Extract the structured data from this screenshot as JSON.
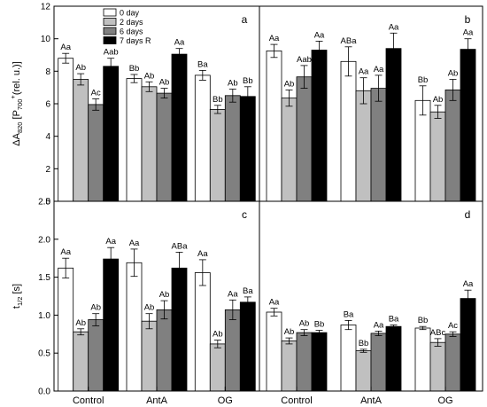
{
  "chart_data": {
    "type": "bar",
    "legend": {
      "position": "top-left",
      "entries": [
        {
          "name": "0 day",
          "color": "#ffffff"
        },
        {
          "name": "2 days",
          "color": "#c0c0c0"
        },
        {
          "name": "6 days",
          "color": "#808080"
        },
        {
          "name": "7 days R",
          "color": "#000000"
        }
      ]
    },
    "categories": [
      "Control",
      "AntA",
      "OG"
    ],
    "panels": [
      {
        "letter": "a",
        "ylabel_main": "ΔA",
        "ylabel_sub1": "820",
        "ylabel_mid": " [P",
        "ylabel_sub2": "700",
        "ylabel_sup": "+",
        "ylabel_end": "(rel. u.)]",
        "ylim": [
          0,
          12
        ],
        "yticks": [
          "0",
          "2",
          "4",
          "6",
          "8",
          "10",
          "12"
        ],
        "series": [
          {
            "name": "0 day",
            "values": [
              8.8,
              7.55,
              7.75
            ],
            "errors": [
              0.3,
              0.25,
              0.3
            ],
            "labels": [
              "Aa",
              "Bb",
              "Ba"
            ]
          },
          {
            "name": "2 days",
            "values": [
              7.5,
              7.05,
              5.65
            ],
            "errors": [
              0.35,
              0.3,
              0.25
            ],
            "labels": [
              "Ab",
              "Ab",
              "Bb"
            ]
          },
          {
            "name": "6 days",
            "values": [
              5.95,
              6.65,
              6.5
            ],
            "errors": [
              0.35,
              0.3,
              0.4
            ],
            "labels": [
              "Ac",
              "Ab",
              "Ab"
            ]
          },
          {
            "name": "7 days R",
            "values": [
              8.3,
              9.05,
              6.45
            ],
            "errors": [
              0.5,
              0.35,
              0.6
            ],
            "labels": [
              "Aab",
              "Aa",
              "Bb"
            ]
          }
        ]
      },
      {
        "letter": "b",
        "ylim": [
          0,
          12
        ],
        "series": [
          {
            "name": "0 day",
            "values": [
              9.25,
              8.6,
              6.2
            ],
            "errors": [
              0.4,
              0.9,
              0.9
            ],
            "labels": [
              "Aa",
              "ABa",
              "Bb"
            ]
          },
          {
            "name": "2 days",
            "values": [
              6.35,
              6.8,
              5.5
            ],
            "errors": [
              0.5,
              0.8,
              0.4
            ],
            "labels": [
              "Ab",
              "Aa",
              "Ab"
            ]
          },
          {
            "name": "6 days",
            "values": [
              7.65,
              6.95,
              6.85
            ],
            "errors": [
              0.7,
              0.8,
              0.65
            ],
            "labels": [
              "Aab",
              "Aa",
              "Ab"
            ]
          },
          {
            "name": "7 days R",
            "values": [
              9.3,
              9.4,
              9.35
            ],
            "errors": [
              0.55,
              0.95,
              0.65
            ],
            "labels": [
              "Aa",
              "Aa",
              "Aa"
            ]
          }
        ]
      },
      {
        "letter": "c",
        "ylabel_main": "t",
        "ylabel_sub1": "1/2",
        "ylabel_end": " [s]",
        "ylim": [
          0,
          2.5
        ],
        "yticks": [
          "0.0",
          "0.5",
          "1.0",
          "1.5",
          "2.0",
          "2.5"
        ],
        "series": [
          {
            "name": "0 day",
            "values": [
              1.62,
              1.69,
              1.56
            ],
            "errors": [
              0.13,
              0.18,
              0.17
            ],
            "labels": [
              "Aa",
              "Aa",
              "Aa"
            ]
          },
          {
            "name": "2 days",
            "values": [
              0.78,
              0.92,
              0.62
            ],
            "errors": [
              0.04,
              0.1,
              0.05
            ],
            "labels": [
              "Ab",
              "Ab",
              "Ab"
            ]
          },
          {
            "name": "6 days",
            "values": [
              0.94,
              1.07,
              1.07
            ],
            "errors": [
              0.08,
              0.12,
              0.13
            ],
            "labels": [
              "Ab",
              "Ab",
              "Aa"
            ]
          },
          {
            "name": "7 days R",
            "values": [
              1.74,
              1.62,
              1.17
            ],
            "errors": [
              0.15,
              0.21,
              0.07
            ],
            "labels": [
              "Aa",
              "ABa",
              "Ba"
            ]
          }
        ]
      },
      {
        "letter": "d",
        "ylim": [
          0,
          2.5
        ],
        "series": [
          {
            "name": "0 day",
            "values": [
              1.04,
              0.87,
              0.83
            ],
            "errors": [
              0.05,
              0.06,
              0.02
            ],
            "labels": [
              "Aa",
              "Ba",
              "Bb"
            ]
          },
          {
            "name": "2 days",
            "values": [
              0.66,
              0.53,
              0.64
            ],
            "errors": [
              0.04,
              0.02,
              0.05
            ],
            "labels": [
              "Ab",
              "Bb",
              "ABc"
            ]
          },
          {
            "name": "6 days",
            "values": [
              0.77,
              0.76,
              0.75
            ],
            "errors": [
              0.04,
              0.03,
              0.03
            ],
            "labels": [
              "Ab",
              "Aa",
              "Ac"
            ]
          },
          {
            "name": "7 days R",
            "values": [
              0.77,
              0.85,
              1.22
            ],
            "errors": [
              0.03,
              0.02,
              0.11
            ],
            "labels": [
              "Bb",
              "Ba",
              "Aa"
            ]
          }
        ]
      }
    ]
  }
}
